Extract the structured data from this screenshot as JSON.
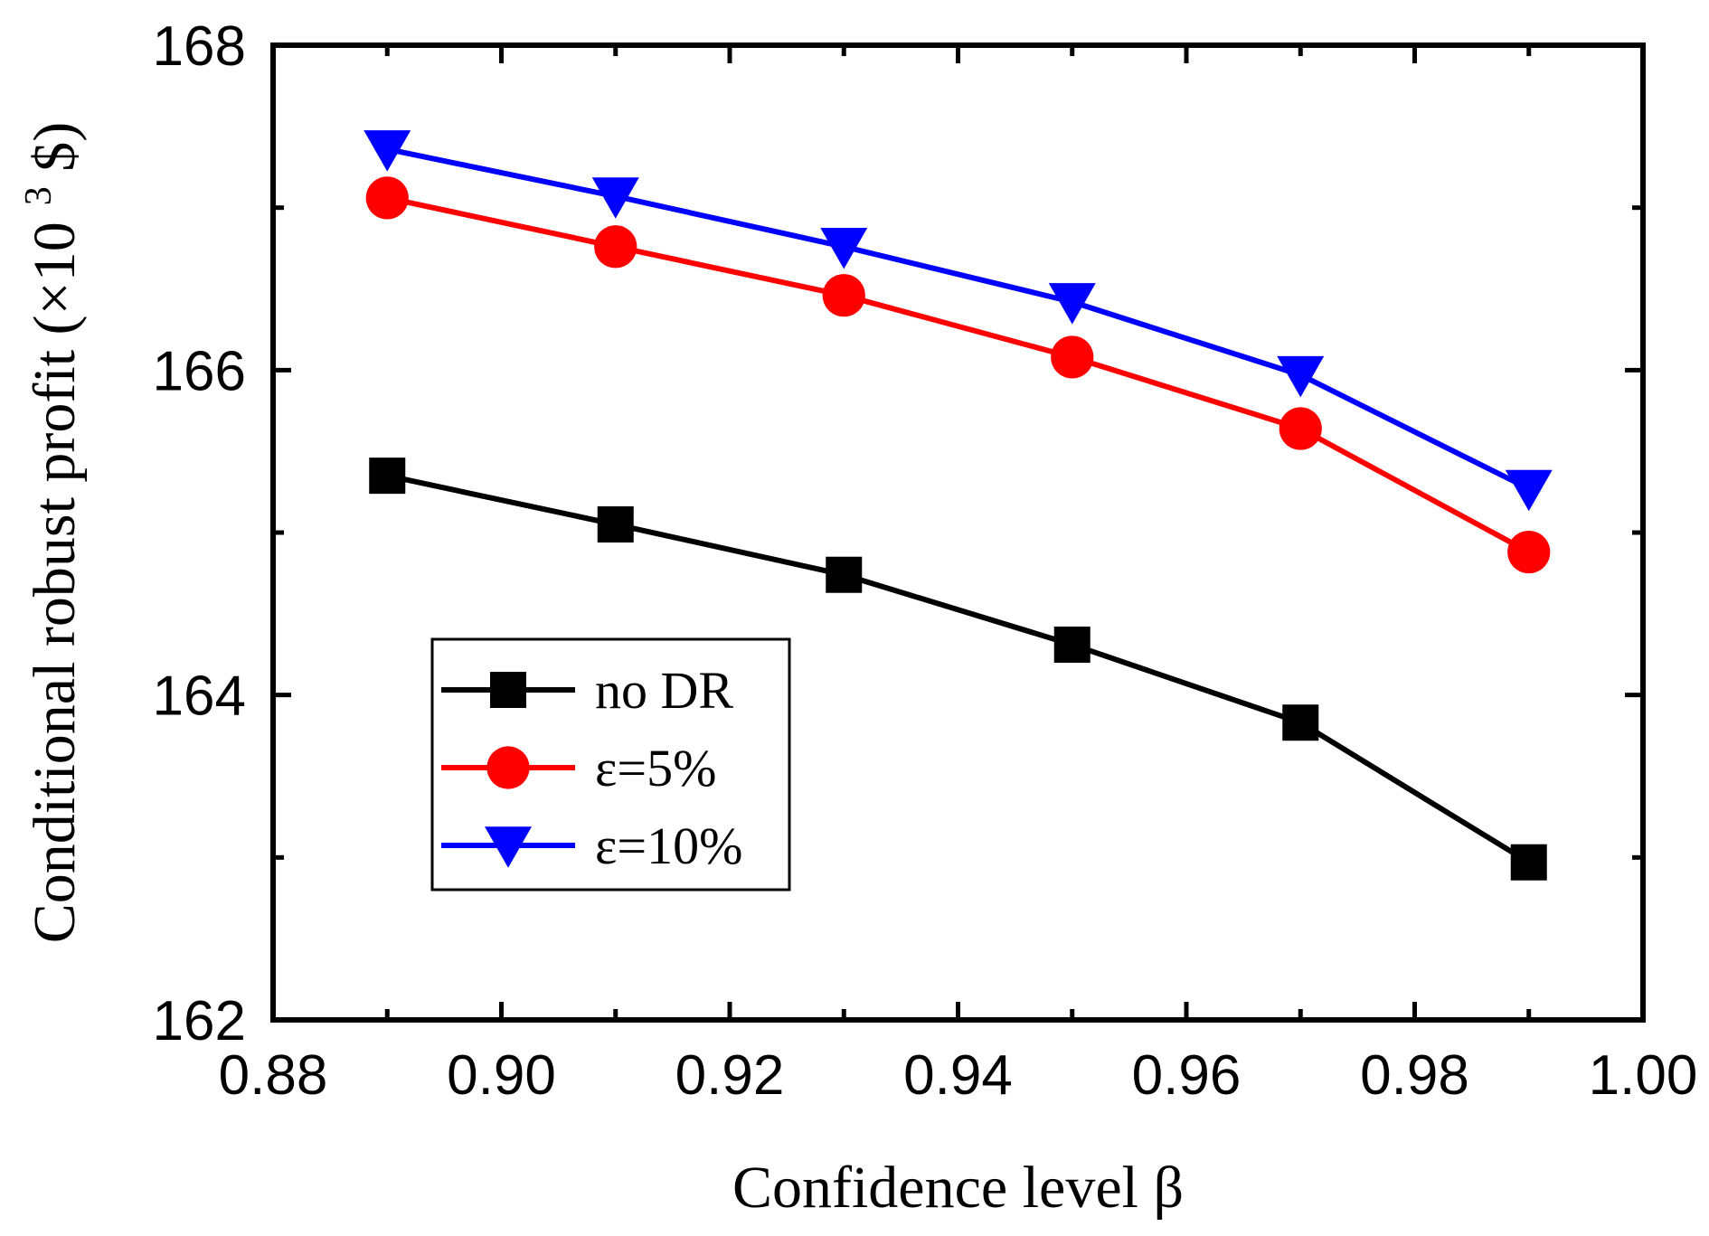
{
  "chart_data": {
    "type": "line",
    "xlabel": "Confidence level β",
    "ylabel_main": "Conditional robust profit (×10",
    "ylabel_sup": "3",
    "ylabel_tail": " $)",
    "xlim": [
      0.88,
      1.0
    ],
    "ylim": [
      162,
      168
    ],
    "xticks": [
      0.88,
      0.9,
      0.92,
      0.94,
      0.96,
      0.98,
      1.0
    ],
    "xtick_labels": [
      "0.88",
      "0.90",
      "0.92",
      "0.94",
      "0.96",
      "0.98",
      "1.00"
    ],
    "yticks": [
      162,
      164,
      166,
      168
    ],
    "ytick_labels": [
      "162",
      "164",
      "166",
      "168"
    ],
    "yminor_ticks": [
      163,
      165,
      167
    ],
    "grid": false,
    "legend_position": "bottom-left",
    "x": [
      0.89,
      0.91,
      0.93,
      0.95,
      0.97,
      0.99
    ],
    "series": [
      {
        "name": "no DR",
        "color": "#000000",
        "marker": "square",
        "values": [
          165.35,
          165.05,
          164.74,
          164.31,
          163.83,
          162.97
        ]
      },
      {
        "name": "ε=5%",
        "color": "#ff0000",
        "marker": "circle",
        "values": [
          167.06,
          166.76,
          166.46,
          166.08,
          165.64,
          164.88
        ]
      },
      {
        "name": "ε=10%",
        "color": "#0000ff",
        "marker": "triangle-down",
        "values": [
          167.36,
          167.07,
          166.76,
          166.42,
          165.97,
          165.27
        ]
      }
    ]
  }
}
